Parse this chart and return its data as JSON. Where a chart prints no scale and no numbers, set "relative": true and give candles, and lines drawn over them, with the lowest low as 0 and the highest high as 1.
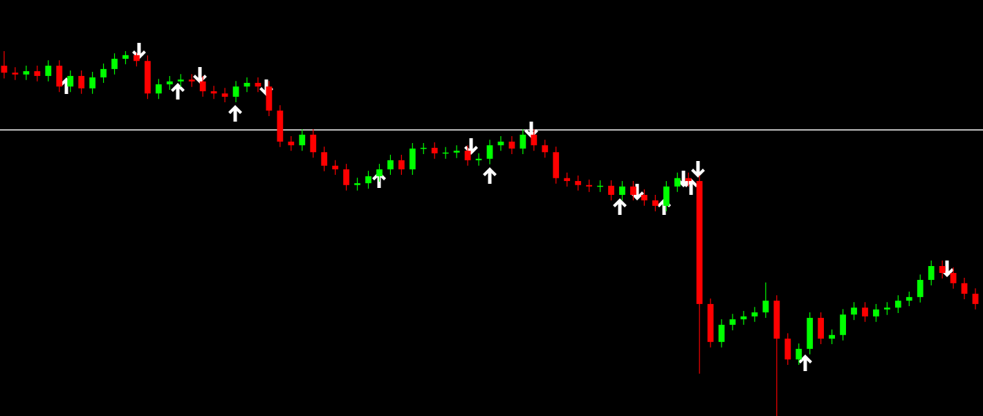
{
  "chart_data": {
    "type": "candlestick",
    "relative": true,
    "categories": [
      null,
      null,
      null,
      null,
      null,
      null,
      null,
      null,
      null,
      null,
      null,
      null,
      null,
      null,
      null,
      null,
      null,
      null,
      null,
      null,
      null,
      null,
      null,
      null,
      null,
      null,
      null,
      null,
      null,
      null,
      null,
      null,
      null,
      null,
      null,
      null,
      null,
      null,
      null,
      null,
      null,
      null,
      null,
      null,
      null,
      null,
      null,
      null,
      null,
      null,
      null,
      null,
      null,
      null,
      null,
      null,
      null,
      null,
      null,
      null,
      null,
      null,
      null,
      null,
      null,
      null,
      null,
      null,
      null,
      null,
      null,
      null,
      null,
      null,
      null,
      null,
      null,
      null,
      null,
      null,
      null,
      null,
      null,
      null,
      null,
      null,
      null,
      null,
      null
    ],
    "ohlc": [
      [
        0.96,
        1,
        0.925,
        0.941
      ],
      [
        0.941,
        0.956,
        0.921,
        0.936
      ],
      [
        0.936,
        0.96,
        0.921,
        0.945
      ],
      [
        0.945,
        0.96,
        0.917,
        0.932
      ],
      [
        0.932,
        0.975,
        0.917,
        0.96
      ],
      [
        0.96,
        0.975,
        0.888,
        0.903
      ],
      [
        0.903,
        0.947,
        0.888,
        0.932
      ],
      [
        0.932,
        0.947,
        0.883,
        0.898
      ],
      [
        0.898,
        0.943,
        0.883,
        0.928
      ],
      [
        0.928,
        0.966,
        0.913,
        0.951
      ],
      [
        0.951,
        0.994,
        0.936,
        0.979
      ],
      [
        0.979,
        1,
        0.964,
        0.989
      ],
      [
        0.989,
        0.995,
        0.958,
        0.973
      ],
      [
        0.973,
        0.988,
        0.869,
        0.884
      ],
      [
        0.884,
        0.924,
        0.869,
        0.909
      ],
      [
        0.909,
        0.932,
        0.894,
        0.917
      ],
      [
        0.917,
        0.937,
        0.902,
        0.922
      ],
      [
        0.922,
        0.937,
        0.902,
        0.917
      ],
      [
        0.917,
        0.932,
        0.875,
        0.89
      ],
      [
        0.89,
        0.905,
        0.869,
        0.884
      ],
      [
        0.884,
        0.899,
        0.86,
        0.875
      ],
      [
        0.875,
        0.918,
        0.86,
        0.903
      ],
      [
        0.903,
        0.928,
        0.888,
        0.913
      ],
      [
        0.913,
        0.928,
        0.888,
        0.903
      ],
      [
        0.903,
        0.918,
        0.822,
        0.837
      ],
      [
        0.837,
        0.852,
        0.737,
        0.752
      ],
      [
        0.752,
        0.767,
        0.727,
        0.742
      ],
      [
        0.742,
        0.786,
        0.727,
        0.771
      ],
      [
        0.771,
        0.786,
        0.708,
        0.723
      ],
      [
        0.723,
        0.738,
        0.671,
        0.686
      ],
      [
        0.686,
        0.701,
        0.661,
        0.676
      ],
      [
        0.676,
        0.691,
        0.618,
        0.633
      ],
      [
        0.633,
        0.653,
        0.618,
        0.638
      ],
      [
        0.638,
        0.672,
        0.623,
        0.657
      ],
      [
        0.657,
        0.691,
        0.642,
        0.676
      ],
      [
        0.676,
        0.716,
        0.661,
        0.701
      ],
      [
        0.701,
        0.716,
        0.661,
        0.676
      ],
      [
        0.676,
        0.748,
        0.661,
        0.733
      ],
      [
        0.733,
        0.748,
        0.718,
        0.735
      ],
      [
        0.735,
        0.75,
        0.705,
        0.72
      ],
      [
        0.72,
        0.737,
        0.705,
        0.722
      ],
      [
        0.722,
        0.742,
        0.707,
        0.727
      ],
      [
        0.727,
        0.742,
        0.686,
        0.701
      ],
      [
        0.701,
        0.72,
        0.686,
        0.705
      ],
      [
        0.705,
        0.757,
        0.69,
        0.742
      ],
      [
        0.742,
        0.767,
        0.727,
        0.752
      ],
      [
        0.752,
        0.767,
        0.718,
        0.733
      ],
      [
        0.733,
        0.786,
        0.718,
        0.771
      ],
      [
        0.771,
        0.786,
        0.727,
        0.742
      ],
      [
        0.742,
        0.757,
        0.708,
        0.723
      ],
      [
        0.723,
        0.738,
        0.637,
        0.652
      ],
      [
        0.652,
        0.667,
        0.629,
        0.644
      ],
      [
        0.644,
        0.659,
        0.618,
        0.633
      ],
      [
        0.633,
        0.648,
        0.614,
        0.629
      ],
      [
        0.629,
        0.646,
        0.614,
        0.631
      ],
      [
        0.631,
        0.646,
        0.591,
        0.606
      ],
      [
        0.606,
        0.644,
        0.591,
        0.629
      ],
      [
        0.629,
        0.644,
        0.591,
        0.606
      ],
      [
        0.606,
        0.621,
        0.576,
        0.591
      ],
      [
        0.591,
        0.606,
        0.561,
        0.576
      ],
      [
        0.576,
        0.644,
        0.561,
        0.629
      ],
      [
        0.629,
        0.667,
        0.614,
        0.652
      ],
      [
        0.652,
        0.667,
        0.629,
        0.644
      ],
      [
        0.644,
        0.659,
        0.116,
        0.307
      ],
      [
        0.307,
        0.322,
        0.188,
        0.203
      ],
      [
        0.203,
        0.265,
        0.188,
        0.25
      ],
      [
        0.25,
        0.28,
        0.235,
        0.265
      ],
      [
        0.265,
        0.288,
        0.25,
        0.273
      ],
      [
        0.273,
        0.299,
        0.258,
        0.284
      ],
      [
        0.284,
        0.366,
        0.269,
        0.316
      ],
      [
        0.316,
        0.331,
        0,
        0.212
      ],
      [
        0.212,
        0.227,
        0.14,
        0.155
      ],
      [
        0.155,
        0.199,
        0.14,
        0.184
      ],
      [
        0.184,
        0.284,
        0.169,
        0.269
      ],
      [
        0.269,
        0.284,
        0.197,
        0.212
      ],
      [
        0.212,
        0.237,
        0.197,
        0.222
      ],
      [
        0.222,
        0.293,
        0.207,
        0.278
      ],
      [
        0.278,
        0.312,
        0.263,
        0.297
      ],
      [
        0.297,
        0.312,
        0.258,
        0.273
      ],
      [
        0.273,
        0.307,
        0.258,
        0.292
      ],
      [
        0.292,
        0.312,
        0.277,
        0.297
      ],
      [
        0.297,
        0.331,
        0.282,
        0.316
      ],
      [
        0.316,
        0.341,
        0.301,
        0.326
      ],
      [
        0.326,
        0.388,
        0.311,
        0.373
      ],
      [
        0.373,
        0.426,
        0.358,
        0.411
      ],
      [
        0.411,
        0.426,
        0.377,
        0.392
      ],
      [
        0.392,
        0.407,
        0.349,
        0.364
      ],
      [
        0.364,
        0.379,
        0.32,
        0.335
      ],
      [
        0.335,
        0.35,
        0.292,
        0.307
      ]
    ],
    "colors": [
      "#ff0000",
      "#ff0000",
      "#00ff00",
      "#ff0000",
      "#00ff00",
      "#ff0000",
      "#00ff00",
      "#ff0000",
      "#00ff00",
      "#00ff00",
      "#00ff00",
      "#00ff00",
      "#ff0000",
      "#ff0000",
      "#00ff00",
      "#00ff00",
      "#00ff00",
      "#ff0000",
      "#ff0000",
      "#ff0000",
      "#ff0000",
      "#00ff00",
      "#00ff00",
      "#ff0000",
      "#ff0000",
      "#ff0000",
      "#ff0000",
      "#00ff00",
      "#ff0000",
      "#ff0000",
      "#ff0000",
      "#ff0000",
      "#00ff00",
      "#00ff00",
      "#00ff00",
      "#00ff00",
      "#ff0000",
      "#00ff00",
      "#00ff00",
      "#ff0000",
      "#00ff00",
      "#00ff00",
      "#ff0000",
      "#00ff00",
      "#00ff00",
      "#00ff00",
      "#ff0000",
      "#00ff00",
      "#ff0000",
      "#ff0000",
      "#ff0000",
      "#ff0000",
      "#ff0000",
      "#ff0000",
      "#00ff00",
      "#ff0000",
      "#00ff00",
      "#ff0000",
      "#ff0000",
      "#ff0000",
      "#00ff00",
      "#00ff00",
      "#ff0000",
      "#ff0000",
      "#ff0000",
      "#00ff00",
      "#00ff00",
      "#00ff00",
      "#00ff00",
      "#00ff00",
      "#ff0000",
      "#ff0000",
      "#00ff00",
      "#00ff00",
      "#ff0000",
      "#00ff00",
      "#00ff00",
      "#00ff00",
      "#ff0000",
      "#00ff00",
      "#00ff00",
      "#00ff00",
      "#00ff00",
      "#00ff00",
      "#00ff00",
      "#ff0000",
      "#ff0000",
      "#ff0000",
      "#ff0000"
    ],
    "ref_lines": [
      {
        "axis": "y",
        "value": 0.784,
        "color": "#ffffff"
      }
    ]
  }
}
